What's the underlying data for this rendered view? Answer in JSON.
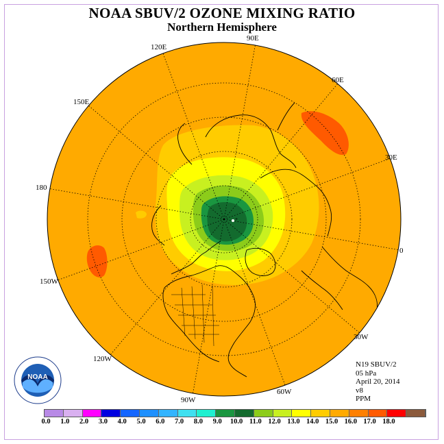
{
  "title": "NOAA SBUV/2 OZONE MIXING RATIO",
  "subtitle": "Northern Hemisphere",
  "longitude_labels": {
    "lon_90e": "90E",
    "lon_60e": "60E",
    "lon_30e": "30E",
    "lon_0": "0",
    "lon_30w": "30W",
    "lon_60w": "60W",
    "lon_90w": "90W",
    "lon_120w": "120W",
    "lon_150w": "150W",
    "lon_180": "180",
    "lon_150e": "150E",
    "lon_120e": "120E"
  },
  "metadata": {
    "satellite": "N19 SBUV/2",
    "pressure_level": "05 hPa",
    "date": "April 20, 2014",
    "version": "v8",
    "units": "PPM"
  },
  "logo_text": "NOAA",
  "colorbar": {
    "colors": [
      "#b88ae6",
      "#d9b0f0",
      "#ff00ff",
      "#0000e0",
      "#1466ff",
      "#1e90ff",
      "#33b4ff",
      "#40e0f0",
      "#20f0d0",
      "#1a9640",
      "#136b2e",
      "#8ccc1a",
      "#c8f020",
      "#ffff00",
      "#ffcc00",
      "#ffaa00",
      "#ff8000",
      "#ff5a00",
      "#ff0000",
      "#8b5a3c"
    ],
    "ticks": [
      "0.0",
      "1.0",
      "2.0",
      "3.0",
      "4.0",
      "5.0",
      "6.0",
      "7.0",
      "8.0",
      "9.0",
      "10.0",
      "11.0",
      "12.0",
      "13.0",
      "14.0",
      "15.0",
      "16.0",
      "17.0",
      "18.0"
    ]
  },
  "field_colors": {
    "background": "#ffaa00",
    "c14": "#ffcc00",
    "c13": "#ffff00",
    "c12": "#c8f020",
    "c11": "#8ccc1a",
    "c9": "#1a9640",
    "c10": "#136b2e",
    "c16": "#ff5a00"
  }
}
